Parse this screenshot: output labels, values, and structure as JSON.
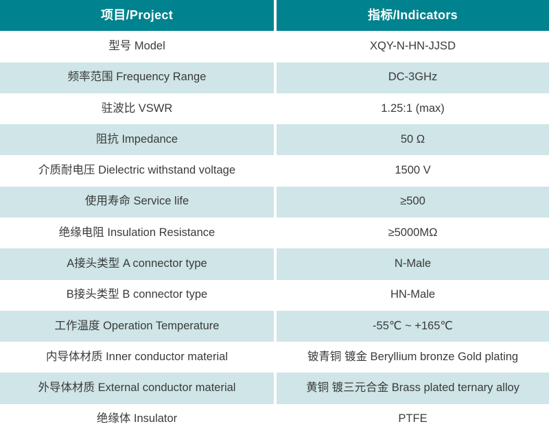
{
  "colors": {
    "header_bg": "#00838f",
    "header_text": "#ffffff",
    "row_alt_bg": "#cfe5e7",
    "row_plain_bg": "#ffffff",
    "body_text": "#3a3a3a"
  },
  "table": {
    "header": {
      "project": "项目/Project",
      "indicators": "指标/Indicators"
    },
    "rows": [
      {
        "project": "型号 Model",
        "indicator": "XQY-N-HN-JJSD"
      },
      {
        "project": "频率范围 Frequency Range",
        "indicator": "DC-3GHz"
      },
      {
        "project": "驻波比 VSWR",
        "indicator": "1.25:1 (max)"
      },
      {
        "project": "阻抗 Impedance",
        "indicator": "50 Ω"
      },
      {
        "project": "介质耐电压 Dielectric withstand voltage",
        "indicator": "1500 V"
      },
      {
        "project": "使用寿命 Service life",
        "indicator": "≥500"
      },
      {
        "project": "绝缘电阻 Insulation Resistance",
        "indicator": "≥5000MΩ"
      },
      {
        "project": "A接头类型 A connector type",
        "indicator": "N-Male"
      },
      {
        "project": "B接头类型 B connector type",
        "indicator": "HN-Male"
      },
      {
        "project": "工作温度 Operation Temperature",
        "indicator": "-55℃ ~ +165℃"
      },
      {
        "project": "内导体材质 Inner conductor material",
        "indicator": "铍青铜 镀金 Beryllium bronze Gold plating"
      },
      {
        "project": "外导体材质 External conductor material",
        "indicator": "黄铜 镀三元合金 Brass plated ternary alloy"
      },
      {
        "project": "绝缘体 Insulator",
        "indicator": "PTFE"
      }
    ]
  }
}
